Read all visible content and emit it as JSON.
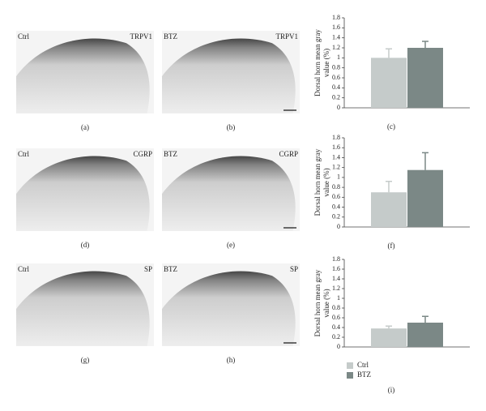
{
  "images": [
    {
      "left": "Ctrl",
      "right": "TRPV1",
      "label": "(a)"
    },
    {
      "left": "BTZ",
      "right": "TRPV1",
      "label": "(b)"
    },
    {
      "left": "Ctrl",
      "right": "CGRP",
      "label": "(d)"
    },
    {
      "left": "BTZ",
      "right": "CGRP",
      "label": "(e)"
    },
    {
      "left": "Ctrl",
      "right": "SP",
      "label": "(g)"
    },
    {
      "left": "BTZ",
      "right": "SP",
      "label": "(h)"
    }
  ],
  "legend": [
    {
      "name": "Ctrl",
      "color": "#c5cbca"
    },
    {
      "name": "BTZ",
      "color": "#7b8886"
    }
  ],
  "chart_data": [
    {
      "type": "bar",
      "label": "(c)",
      "ylabel": [
        "Dorsal horn mean gray",
        "value (%)"
      ],
      "series": [
        {
          "values": [
            1.0
          ],
          "errors": [
            0.18
          ]
        },
        {
          "values": [
            1.2
          ],
          "errors": [
            0.13
          ]
        }
      ],
      "ylim": [
        0,
        1.8
      ],
      "yticks": [
        0,
        0.2,
        0.4,
        0.6,
        0.8,
        1,
        1.2,
        1.4,
        1.6,
        1.8
      ]
    },
    {
      "type": "bar",
      "label": "(f)",
      "ylabel": [
        "Dorsal horn mean gray",
        "value (%)"
      ],
      "series": [
        {
          "values": [
            0.7
          ],
          "errors": [
            0.22
          ]
        },
        {
          "values": [
            1.15
          ],
          "errors": [
            0.35
          ]
        }
      ],
      "ylim": [
        0,
        1.8
      ],
      "yticks": [
        0,
        0.2,
        0.4,
        0.6,
        0.8,
        1,
        1.2,
        1.4,
        1.6,
        1.8
      ]
    },
    {
      "type": "bar",
      "label": "(i)",
      "ylabel": [
        "Dorsal horn mean gray",
        "value (%)"
      ],
      "series": [
        {
          "values": [
            0.38
          ],
          "errors": [
            0.05
          ]
        },
        {
          "values": [
            0.5
          ],
          "errors": [
            0.13
          ]
        }
      ],
      "ylim": [
        0,
        1.8
      ],
      "yticks": [
        0,
        0.2,
        0.4,
        0.6,
        0.8,
        1,
        1.2,
        1.4,
        1.6,
        1.8
      ]
    }
  ]
}
